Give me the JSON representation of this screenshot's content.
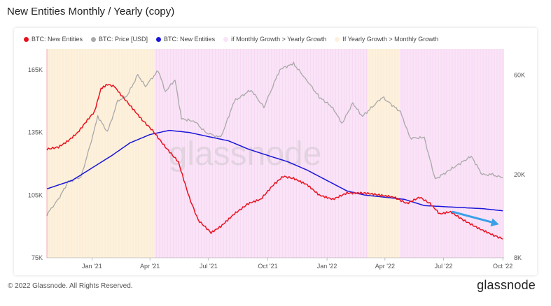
{
  "page": {
    "title": "New Entities Monthly / Yearly (copy)",
    "copyright": "© 2022 Glassnode. All Rights Reserved.",
    "brand": "glassnode",
    "watermark": "glassnode"
  },
  "colors": {
    "new_entities_monthly": "#e8111e",
    "price": "#a9a9a9",
    "new_entities_yearly": "#1a16d8",
    "monthly_band": "#fae3f7",
    "yearly_band": "#fdf1de",
    "arrow": "#3aa0e8"
  },
  "chart_data": {
    "type": "line",
    "legend": [
      {
        "label": "BTC: New Entities",
        "color": "#e8111e"
      },
      {
        "label": "BTC: Price [USD]",
        "color": "#a9a9a9"
      },
      {
        "label": "BTC: New Entities",
        "color": "#1a16d8"
      },
      {
        "label": "if Monthly Growth > Yearly Growth",
        "color": "#fae3f7"
      },
      {
        "label": "If Yearly Growth > Monthly Growth",
        "color": "#fdf1de"
      }
    ],
    "x_ticks": [
      "Jan '21",
      "Apr '21",
      "Jul '21",
      "Oct '21",
      "Jan '22",
      "Apr '22",
      "Jul '22",
      "Oct '22"
    ],
    "x_range": [
      "2020-10-23",
      "2022-10-03"
    ],
    "y_left": {
      "ticks": [
        "75K",
        "105K",
        "135K",
        "165K"
      ],
      "tick_values": [
        75000,
        105000,
        135000,
        165000
      ],
      "range": [
        75000,
        175000
      ]
    },
    "y_right": {
      "scale": "log",
      "ticks": [
        "8K",
        "20K",
        "60K"
      ],
      "tick_values": [
        8000,
        20000,
        60000
      ],
      "range": [
        8000,
        80000
      ]
    },
    "bands": [
      {
        "type": "yearly",
        "start": "2020-10-23",
        "end": "2021-04-08"
      },
      {
        "type": "monthly",
        "start": "2021-04-08",
        "end": "2022-03-05"
      },
      {
        "type": "yearly",
        "start": "2022-03-05",
        "end": "2022-04-24"
      },
      {
        "type": "monthly",
        "start": "2022-04-24",
        "end": "2022-10-03"
      }
    ],
    "series": [
      {
        "name": "BTC: New Entities",
        "role": "monthly",
        "axis": "left",
        "points": [
          [
            "2020-10-23",
            127000
          ],
          [
            "2020-11-10",
            128000
          ],
          [
            "2020-11-25",
            131000
          ],
          [
            "2020-12-10",
            135000
          ],
          [
            "2020-12-25",
            141000
          ],
          [
            "2021-01-05",
            145000
          ],
          [
            "2021-01-15",
            156000
          ],
          [
            "2021-01-25",
            158000
          ],
          [
            "2021-02-05",
            157000
          ],
          [
            "2021-02-15",
            153000
          ],
          [
            "2021-03-01",
            148000
          ],
          [
            "2021-03-20",
            141000
          ],
          [
            "2021-04-05",
            136000
          ],
          [
            "2021-04-25",
            128000
          ],
          [
            "2021-05-15",
            121000
          ],
          [
            "2021-06-01",
            104000
          ],
          [
            "2021-06-15",
            93000
          ],
          [
            "2021-07-05",
            87000
          ],
          [
            "2021-07-20",
            90000
          ],
          [
            "2021-08-10",
            96000
          ],
          [
            "2021-09-01",
            101000
          ],
          [
            "2021-09-20",
            103000
          ],
          [
            "2021-10-10",
            110000
          ],
          [
            "2021-10-25",
            114000
          ],
          [
            "2021-11-10",
            113000
          ],
          [
            "2021-12-01",
            110000
          ],
          [
            "2021-12-20",
            105000
          ],
          [
            "2022-01-10",
            103000
          ],
          [
            "2022-02-01",
            106000
          ],
          [
            "2022-03-01",
            106000
          ],
          [
            "2022-03-25",
            105000
          ],
          [
            "2022-04-15",
            104000
          ],
          [
            "2022-05-05",
            101000
          ],
          [
            "2022-05-25",
            104000
          ],
          [
            "2022-06-10",
            101000
          ],
          [
            "2022-06-25",
            96000
          ],
          [
            "2022-07-12",
            97000
          ],
          [
            "2022-08-01",
            93000
          ],
          [
            "2022-08-25",
            89000
          ],
          [
            "2022-09-15",
            86000
          ],
          [
            "2022-10-01",
            84000
          ]
        ]
      },
      {
        "name": "BTC: Price [USD]",
        "role": "price",
        "axis": "right",
        "points": [
          [
            "2020-10-23",
            12900
          ],
          [
            "2020-11-10",
            15300
          ],
          [
            "2020-11-25",
            18500
          ],
          [
            "2020-12-15",
            19500
          ],
          [
            "2020-12-31",
            29000
          ],
          [
            "2021-01-10",
            38000
          ],
          [
            "2021-01-25",
            32000
          ],
          [
            "2021-02-10",
            45000
          ],
          [
            "2021-02-25",
            48000
          ],
          [
            "2021-03-13",
            60000
          ],
          [
            "2021-03-25",
            53000
          ],
          [
            "2021-04-14",
            63000
          ],
          [
            "2021-04-25",
            50000
          ],
          [
            "2021-05-10",
            57000
          ],
          [
            "2021-05-20",
            37000
          ],
          [
            "2021-06-10",
            36000
          ],
          [
            "2021-06-25",
            32000
          ],
          [
            "2021-07-20",
            30000
          ],
          [
            "2021-08-10",
            45000
          ],
          [
            "2021-09-05",
            51000
          ],
          [
            "2021-09-25",
            42000
          ],
          [
            "2021-10-20",
            64000
          ],
          [
            "2021-11-10",
            68000
          ],
          [
            "2021-11-30",
            57000
          ],
          [
            "2021-12-20",
            47000
          ],
          [
            "2022-01-10",
            42000
          ],
          [
            "2022-01-24",
            35000
          ],
          [
            "2022-02-10",
            44000
          ],
          [
            "2022-02-25",
            38000
          ],
          [
            "2022-03-28",
            47000
          ],
          [
            "2022-04-25",
            40000
          ],
          [
            "2022-05-10",
            30000
          ],
          [
            "2022-06-01",
            30000
          ],
          [
            "2022-06-18",
            19000
          ],
          [
            "2022-07-10",
            21000
          ],
          [
            "2022-08-13",
            24500
          ],
          [
            "2022-08-30",
            20000
          ],
          [
            "2022-09-15",
            20000
          ],
          [
            "2022-10-01",
            19300
          ]
        ]
      },
      {
        "name": "BTC: New Entities",
        "role": "yearly",
        "axis": "left",
        "points": [
          [
            "2020-10-23",
            108000
          ],
          [
            "2020-12-01",
            112000
          ],
          [
            "2021-01-01",
            118000
          ],
          [
            "2021-02-01",
            124000
          ],
          [
            "2021-03-01",
            130000
          ],
          [
            "2021-04-01",
            134000
          ],
          [
            "2021-05-01",
            136000
          ],
          [
            "2021-06-01",
            135000
          ],
          [
            "2021-07-01",
            133000
          ],
          [
            "2021-08-01",
            131000
          ],
          [
            "2021-09-01",
            127000
          ],
          [
            "2021-10-01",
            124000
          ],
          [
            "2021-11-01",
            121000
          ],
          [
            "2021-12-01",
            117000
          ],
          [
            "2022-01-01",
            112000
          ],
          [
            "2022-02-01",
            107000
          ],
          [
            "2022-03-01",
            105000
          ],
          [
            "2022-04-01",
            104000
          ],
          [
            "2022-05-01",
            103000
          ],
          [
            "2022-06-01",
            100000
          ],
          [
            "2022-07-01",
            99500
          ],
          [
            "2022-08-01",
            99000
          ],
          [
            "2022-09-01",
            98500
          ],
          [
            "2022-10-01",
            97500
          ]
        ]
      }
    ],
    "annotation": {
      "type": "arrow",
      "from": [
        "2022-07-15",
        97000
      ],
      "to": [
        "2022-09-25",
        91000
      ]
    }
  }
}
